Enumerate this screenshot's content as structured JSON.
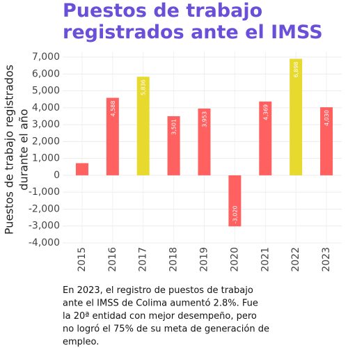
{
  "chart_data": {
    "type": "bar",
    "title": [
      "Puestos de trabajo",
      "registrados ante el IMSS"
    ],
    "y_label": [
      "Puestos de trabajo registrados",
      "durante el año"
    ],
    "categories": [
      "2015",
      "2016",
      "2017",
      "2018",
      "2019",
      "2020",
      "2021",
      "2022",
      "2023"
    ],
    "values": [
      720,
      4588,
      5836,
      3501,
      3953,
      -3020,
      4369,
      6898,
      4030
    ],
    "value_labels": [
      null,
      "4,588",
      "5,836",
      "3,501",
      "3,953",
      "-3,020",
      "4,369",
      "6,898",
      "4,030"
    ],
    "colors": [
      "#ff6161",
      "#ff6161",
      "#e8d92e",
      "#ff6161",
      "#ff6161",
      "#ff6161",
      "#ff6161",
      "#e8d92e",
      "#ff6161"
    ],
    "ylim": [
      -4000,
      7000
    ],
    "yticks": [
      {
        "value": 7000,
        "label": "7,000"
      },
      {
        "value": 6000,
        "label": "6,000"
      },
      {
        "value": 5000,
        "label": "5,000"
      },
      {
        "value": 4000,
        "label": "4,000"
      },
      {
        "value": 3000,
        "label": "3,000"
      },
      {
        "value": 2000,
        "label": "2,000"
      },
      {
        "value": 1000,
        "label": "1,000"
      },
      0,
      {
        "value": -1000,
        "label": "-1,000"
      },
      {
        "value": -2000,
        "label": "-2,000"
      },
      {
        "value": -3000,
        "label": "-3,000"
      },
      {
        "value": -4000,
        "label": "-4,000"
      }
    ],
    "grid": true,
    "caption": [
      "En 2023, el registro de puestos de trabajo",
      "ante el IMSS de Colima aumentó 2.8%. Fue",
      "la 20ª entidad con mejor desempeño, pero",
      "no logró el 75% de su meta de generación de",
      "empleo."
    ]
  }
}
